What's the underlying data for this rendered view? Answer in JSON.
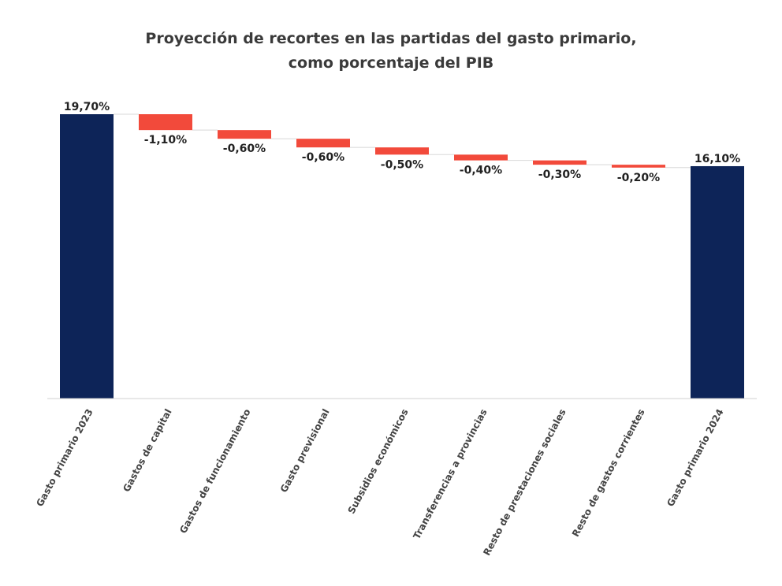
{
  "title_line1": "Proyección de recortes en las partidas del gasto primario,",
  "title_line2": "como porcentaje del PIB",
  "colors": {
    "total": "#0d2458",
    "decrease": "#f24a3b",
    "connector": "#d8d8d8",
    "axis": "#d0d0d0",
    "label": "#222222",
    "tick": "#444444"
  },
  "chart_data": {
    "type": "bar",
    "subtype": "waterfall",
    "categories": [
      "Gasto primario 2023",
      "Gastos de capital",
      "Gastos de funcionamiento",
      "Gasto previsional",
      "Subsidios económicos",
      "Transferencias a provincias",
      "Resto de prestaciones sociales",
      "Resto de gastos corrientes",
      "Gasto primario 2024"
    ],
    "values": [
      19.7,
      -1.1,
      -0.6,
      -0.6,
      -0.5,
      -0.4,
      -0.3,
      -0.2,
      16.1
    ],
    "kinds": [
      "total",
      "decrease",
      "decrease",
      "decrease",
      "decrease",
      "decrease",
      "decrease",
      "decrease",
      "total"
    ],
    "data_labels": [
      "19,70%",
      "-1,10%",
      "-0,60%",
      "-0,60%",
      "-0,50%",
      "-0,40%",
      "-0,30%",
      "-0,20%",
      "16,10%"
    ],
    "ylim": [
      0,
      19.7
    ],
    "grid": false,
    "legend": false
  }
}
